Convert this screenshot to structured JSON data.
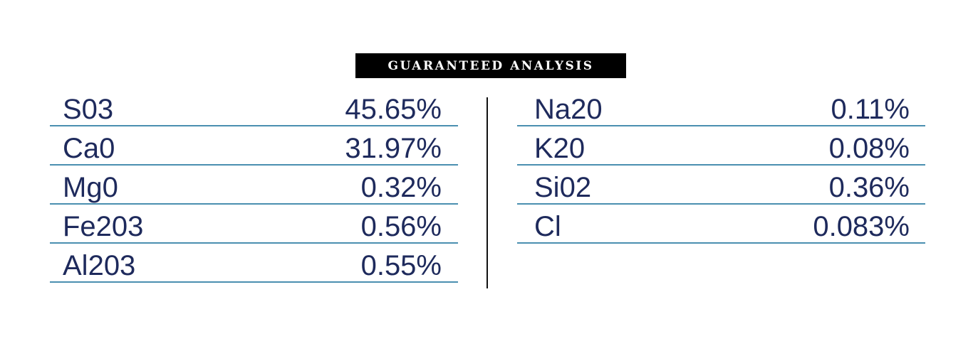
{
  "header": {
    "title": "GUARANTEED ANALYSIS"
  },
  "table_left": {
    "rows": [
      [
        "S03",
        "45.65%"
      ],
      [
        "Ca0",
        "31.97%"
      ],
      [
        "Mg0",
        "0.32%"
      ],
      [
        "Fe203",
        "0.56%"
      ],
      [
        "Al203",
        "0.55%"
      ]
    ]
  },
  "table_right": {
    "rows": [
      [
        "Na20",
        "0.11%"
      ],
      [
        "K20",
        "0.08%"
      ],
      [
        "Si02",
        "0.36%"
      ],
      [
        "Cl",
        "0.083%"
      ]
    ]
  }
}
